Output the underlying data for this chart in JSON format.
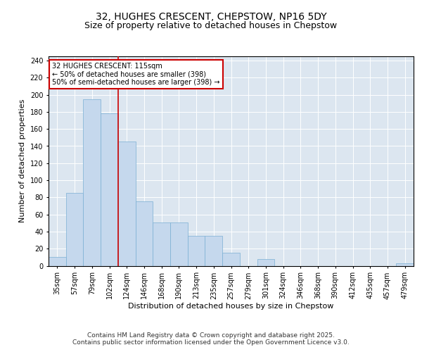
{
  "title": "32, HUGHES CRESCENT, CHEPSTOW, NP16 5DY",
  "subtitle": "Size of property relative to detached houses in Chepstow",
  "xlabel": "Distribution of detached houses by size in Chepstow",
  "ylabel": "Number of detached properties",
  "categories": [
    "35sqm",
    "57sqm",
    "79sqm",
    "102sqm",
    "124sqm",
    "146sqm",
    "168sqm",
    "190sqm",
    "213sqm",
    "235sqm",
    "257sqm",
    "279sqm",
    "301sqm",
    "324sqm",
    "346sqm",
    "368sqm",
    "390sqm",
    "412sqm",
    "435sqm",
    "457sqm",
    "479sqm"
  ],
  "values": [
    10,
    85,
    195,
    178,
    145,
    75,
    51,
    51,
    35,
    35,
    15,
    0,
    8,
    0,
    0,
    0,
    0,
    0,
    0,
    0,
    3
  ],
  "bar_color": "#c5d8ed",
  "bar_edge_color": "#7aafd4",
  "annotation_text": "32 HUGHES CRESCENT: 115sqm\n← 50% of detached houses are smaller (398)\n50% of semi-detached houses are larger (398) →",
  "annotation_box_color": "#ffffff",
  "annotation_box_edge": "#cc0000",
  "vline_color": "#cc0000",
  "vline_x": 3.5,
  "ylim": [
    0,
    245
  ],
  "yticks": [
    0,
    20,
    40,
    60,
    80,
    100,
    120,
    140,
    160,
    180,
    200,
    220,
    240
  ],
  "background_color": "#dce6f0",
  "footer_text": "Contains HM Land Registry data © Crown copyright and database right 2025.\nContains public sector information licensed under the Open Government Licence v3.0.",
  "title_fontsize": 10,
  "subtitle_fontsize": 9,
  "xlabel_fontsize": 8,
  "ylabel_fontsize": 8,
  "tick_fontsize": 7,
  "annotation_fontsize": 7,
  "footer_fontsize": 6.5
}
